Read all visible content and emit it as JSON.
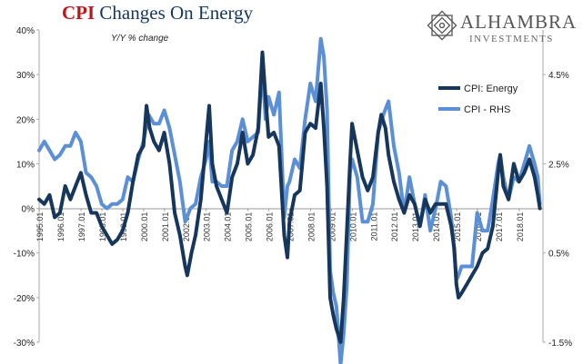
{
  "header": {
    "title_part1": "CPI",
    "title_part2": "Changes On Energy",
    "subtitle": "Y/Y % change"
  },
  "logo": {
    "name": "ALHAMBRA",
    "sub": "INVESTMENTS"
  },
  "chart_data": {
    "type": "line",
    "title": "CPI Changes On Energy",
    "subtitle": "Y/Y % change",
    "x_ticks": [
      "1995.01",
      "1996.01",
      "1997.01",
      "1998.01",
      "1999.01",
      "2000.01",
      "2001.01",
      "2002.01",
      "2003.01",
      "2004.01",
      "2005.01",
      "2006.01",
      "2007.01",
      "2008.01",
      "2009.01",
      "2010.01",
      "2011.01",
      "2012.01",
      "2013.01",
      "2014.01",
      "2015.01",
      "2016.01",
      "2017.01",
      "2018.01"
    ],
    "y_left": {
      "ticks": [
        "40%",
        "30%",
        "20%",
        "10%",
        "0%",
        "-10%",
        "-20%",
        "-30%"
      ],
      "range": [
        -30,
        40
      ]
    },
    "y_right": {
      "ticks": [
        "4.5%",
        "2.5%",
        "0.5%",
        "-1.5%"
      ],
      "range": [
        -1.5,
        5.5
      ]
    },
    "legend": {
      "placement": "top-right"
    },
    "grid": false,
    "series": [
      {
        "name": "CPI: Energy",
        "axis": "left",
        "color": "#16365c",
        "points": [
          [
            1995.0,
            2
          ],
          [
            1995.25,
            1
          ],
          [
            1995.5,
            3
          ],
          [
            1995.75,
            -2
          ],
          [
            1996.0,
            -1
          ],
          [
            1996.25,
            5
          ],
          [
            1996.5,
            2
          ],
          [
            1996.75,
            5
          ],
          [
            1997.0,
            8
          ],
          [
            1997.25,
            3
          ],
          [
            1997.5,
            -1
          ],
          [
            1997.75,
            -1
          ],
          [
            1998.0,
            -4
          ],
          [
            1998.25,
            -6
          ],
          [
            1998.5,
            -8
          ],
          [
            1998.75,
            -7
          ],
          [
            1999.0,
            -5
          ],
          [
            1999.25,
            -1
          ],
          [
            1999.5,
            6
          ],
          [
            1999.75,
            12
          ],
          [
            2000.0,
            14
          ],
          [
            2000.15,
            23
          ],
          [
            2000.3,
            18
          ],
          [
            2000.5,
            15
          ],
          [
            2000.75,
            13
          ],
          [
            2001.0,
            17
          ],
          [
            2001.25,
            10
          ],
          [
            2001.5,
            -1
          ],
          [
            2001.75,
            -6
          ],
          [
            2002.0,
            -13
          ],
          [
            2002.1,
            -15
          ],
          [
            2002.3,
            -10
          ],
          [
            2002.5,
            -6
          ],
          [
            2002.75,
            2
          ],
          [
            2003.0,
            15
          ],
          [
            2003.15,
            23
          ],
          [
            2003.3,
            10
          ],
          [
            2003.5,
            5
          ],
          [
            2003.75,
            2
          ],
          [
            2004.0,
            -1
          ],
          [
            2004.25,
            7
          ],
          [
            2004.5,
            10
          ],
          [
            2004.75,
            17
          ],
          [
            2005.0,
            10
          ],
          [
            2005.25,
            12
          ],
          [
            2005.5,
            18
          ],
          [
            2005.7,
            35
          ],
          [
            2005.85,
            25
          ],
          [
            2006.0,
            16
          ],
          [
            2006.25,
            17
          ],
          [
            2006.5,
            14
          ],
          [
            2006.75,
            -6
          ],
          [
            2006.9,
            -11
          ],
          [
            2007.0,
            -3
          ],
          [
            2007.25,
            3
          ],
          [
            2007.5,
            4
          ],
          [
            2007.75,
            17
          ],
          [
            2008.0,
            19
          ],
          [
            2008.25,
            18
          ],
          [
            2008.5,
            28
          ],
          [
            2008.65,
            18
          ],
          [
            2008.8,
            5
          ],
          [
            2008.95,
            -20
          ],
          [
            2009.1,
            -24
          ],
          [
            2009.25,
            -27
          ],
          [
            2009.45,
            -30
          ],
          [
            2009.6,
            -20
          ],
          [
            2009.75,
            -5
          ],
          [
            2009.9,
            10
          ],
          [
            2010.0,
            19
          ],
          [
            2010.25,
            13
          ],
          [
            2010.5,
            7
          ],
          [
            2010.75,
            4
          ],
          [
            2011.0,
            7
          ],
          [
            2011.25,
            17
          ],
          [
            2011.4,
            21
          ],
          [
            2011.6,
            18
          ],
          [
            2011.75,
            12
          ],
          [
            2012.0,
            6
          ],
          [
            2012.25,
            2
          ],
          [
            2012.5,
            -1
          ],
          [
            2012.75,
            3
          ],
          [
            2013.0,
            1
          ],
          [
            2013.25,
            -4
          ],
          [
            2013.5,
            2
          ],
          [
            2013.75,
            -1
          ],
          [
            2014.0,
            1
          ],
          [
            2014.25,
            1
          ],
          [
            2014.5,
            1
          ],
          [
            2014.75,
            -4
          ],
          [
            2014.9,
            -9
          ],
          [
            2015.0,
            -17
          ],
          [
            2015.1,
            -20
          ],
          [
            2015.25,
            -19
          ],
          [
            2015.5,
            -17
          ],
          [
            2015.75,
            -15
          ],
          [
            2016.0,
            -13
          ],
          [
            2016.25,
            -10
          ],
          [
            2016.5,
            -9
          ],
          [
            2016.75,
            -4
          ],
          [
            2017.0,
            8
          ],
          [
            2017.1,
            12
          ],
          [
            2017.25,
            5
          ],
          [
            2017.5,
            2
          ],
          [
            2017.75,
            10
          ],
          [
            2018.0,
            6
          ],
          [
            2018.25,
            8
          ],
          [
            2018.5,
            11
          ],
          [
            2018.75,
            7
          ],
          [
            2018.9,
            3
          ],
          [
            2019.0,
            0
          ]
        ]
      },
      {
        "name": "CPI - RHS",
        "axis": "right",
        "color": "#5b8fd6",
        "points": [
          [
            1995.0,
            2.8
          ],
          [
            1995.25,
            3.0
          ],
          [
            1995.5,
            2.8
          ],
          [
            1995.75,
            2.6
          ],
          [
            1996.0,
            2.7
          ],
          [
            1996.25,
            2.9
          ],
          [
            1996.5,
            2.9
          ],
          [
            1996.75,
            3.2
          ],
          [
            1997.0,
            3.0
          ],
          [
            1997.25,
            2.3
          ],
          [
            1997.5,
            2.2
          ],
          [
            1997.75,
            2.0
          ],
          [
            1998.0,
            1.6
          ],
          [
            1998.25,
            1.5
          ],
          [
            1998.5,
            1.6
          ],
          [
            1998.75,
            1.6
          ],
          [
            1999.0,
            1.7
          ],
          [
            1999.25,
            2.2
          ],
          [
            1999.5,
            2.1
          ],
          [
            1999.75,
            2.6
          ],
          [
            2000.0,
            3.0
          ],
          [
            2000.25,
            3.6
          ],
          [
            2000.5,
            3.4
          ],
          [
            2000.75,
            3.4
          ],
          [
            2001.0,
            3.7
          ],
          [
            2001.25,
            3.3
          ],
          [
            2001.5,
            2.7
          ],
          [
            2001.75,
            2.1
          ],
          [
            2002.0,
            1.2
          ],
          [
            2002.25,
            1.5
          ],
          [
            2002.5,
            1.6
          ],
          [
            2002.75,
            2.2
          ],
          [
            2003.0,
            2.6
          ],
          [
            2003.15,
            3.0
          ],
          [
            2003.3,
            2.1
          ],
          [
            2003.5,
            2.1
          ],
          [
            2003.75,
            2.0
          ],
          [
            2004.0,
            2.0
          ],
          [
            2004.25,
            2.8
          ],
          [
            2004.5,
            3.0
          ],
          [
            2004.75,
            3.5
          ],
          [
            2005.0,
            3.0
          ],
          [
            2005.25,
            3.1
          ],
          [
            2005.5,
            3.2
          ],
          [
            2005.7,
            4.7
          ],
          [
            2005.85,
            3.5
          ],
          [
            2006.0,
            4.0
          ],
          [
            2006.25,
            3.6
          ],
          [
            2006.5,
            4.1
          ],
          [
            2006.75,
            1.3
          ],
          [
            2006.9,
            2.0
          ],
          [
            2007.0,
            2.1
          ],
          [
            2007.25,
            2.6
          ],
          [
            2007.5,
            2.4
          ],
          [
            2007.75,
            3.5
          ],
          [
            2008.0,
            4.3
          ],
          [
            2008.25,
            3.9
          ],
          [
            2008.5,
            5.3
          ],
          [
            2008.65,
            4.9
          ],
          [
            2008.8,
            3.7
          ],
          [
            2008.95,
            0.1
          ],
          [
            2009.1,
            -0.4
          ],
          [
            2009.25,
            -0.7
          ],
          [
            2009.45,
            -2.0
          ],
          [
            2009.6,
            -1.3
          ],
          [
            2009.75,
            -0.2
          ],
          [
            2009.9,
            2.3
          ],
          [
            2010.0,
            2.6
          ],
          [
            2010.25,
            2.2
          ],
          [
            2010.5,
            1.2
          ],
          [
            2010.75,
            1.2
          ],
          [
            2011.0,
            1.6
          ],
          [
            2011.25,
            3.2
          ],
          [
            2011.5,
            3.6
          ],
          [
            2011.75,
            3.9
          ],
          [
            2012.0,
            2.9
          ],
          [
            2012.25,
            2.3
          ],
          [
            2012.5,
            1.4
          ],
          [
            2012.75,
            2.2
          ],
          [
            2013.0,
            1.6
          ],
          [
            2013.25,
            1.1
          ],
          [
            2013.5,
            1.8
          ],
          [
            2013.75,
            1.0
          ],
          [
            2014.0,
            1.5
          ],
          [
            2014.25,
            2.1
          ],
          [
            2014.5,
            2.0
          ],
          [
            2014.75,
            1.3
          ],
          [
            2014.9,
            0.5
          ],
          [
            2015.0,
            -0.1
          ],
          [
            2015.1,
            0.0
          ],
          [
            2015.25,
            0.2
          ],
          [
            2015.5,
            0.2
          ],
          [
            2015.75,
            0.2
          ],
          [
            2016.0,
            1.4
          ],
          [
            2016.25,
            1.0
          ],
          [
            2016.5,
            1.0
          ],
          [
            2016.75,
            1.7
          ],
          [
            2017.0,
            2.5
          ],
          [
            2017.1,
            2.7
          ],
          [
            2017.25,
            2.2
          ],
          [
            2017.5,
            1.7
          ],
          [
            2017.75,
            2.2
          ],
          [
            2018.0,
            2.1
          ],
          [
            2018.25,
            2.5
          ],
          [
            2018.5,
            2.9
          ],
          [
            2018.75,
            2.5
          ],
          [
            2018.9,
            2.2
          ],
          [
            2019.0,
            1.6
          ]
        ]
      }
    ]
  }
}
